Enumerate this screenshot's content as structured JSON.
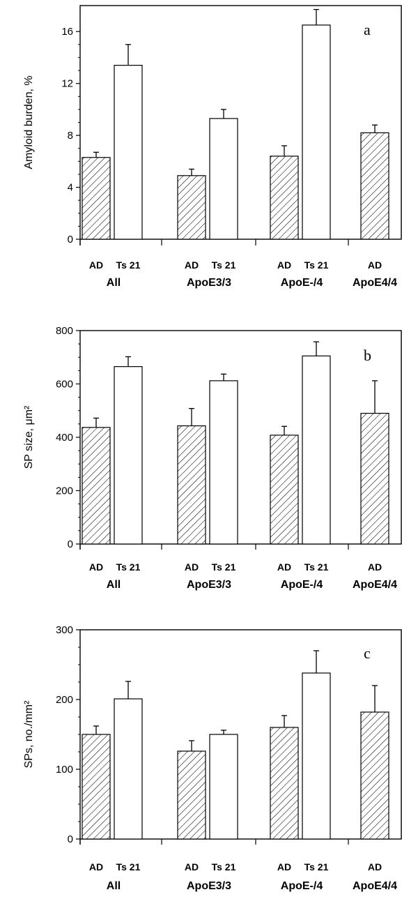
{
  "chart_data": [
    {
      "type": "bar",
      "panel_label": "a",
      "ylabel": "Amyloid burden, %",
      "ylim": [
        0,
        18
      ],
      "yticks": [
        0,
        4,
        8,
        12,
        16
      ],
      "grid": false,
      "groups": [
        {
          "label": "All",
          "bars": [
            {
              "label": "AD",
              "value": 6.3,
              "error": 0.4,
              "fill": "hatch"
            },
            {
              "label": "Ts 21",
              "value": 13.4,
              "error": 1.6,
              "fill": "open"
            }
          ]
        },
        {
          "label": "ApoE3/3",
          "bars": [
            {
              "label": "AD",
              "value": 4.9,
              "error": 0.5,
              "fill": "hatch"
            },
            {
              "label": "Ts 21",
              "value": 9.3,
              "error": 0.7,
              "fill": "open"
            }
          ]
        },
        {
          "label": "ApoE-/4",
          "bars": [
            {
              "label": "AD",
              "value": 6.4,
              "error": 0.8,
              "fill": "hatch"
            },
            {
              "label": "Ts 21",
              "value": 16.5,
              "error": 1.2,
              "fill": "open"
            }
          ]
        },
        {
          "label": "ApoE4/4",
          "bars": [
            {
              "label": "AD",
              "value": 8.2,
              "error": 0.6,
              "fill": "hatch"
            }
          ]
        }
      ]
    },
    {
      "type": "bar",
      "panel_label": "b",
      "ylabel": "SP size, μm²",
      "ylim": [
        0,
        800
      ],
      "yticks": [
        0,
        200,
        400,
        600,
        800
      ],
      "grid": false,
      "groups": [
        {
          "label": "All",
          "bars": [
            {
              "label": "AD",
              "value": 437,
              "error": 35,
              "fill": "hatch"
            },
            {
              "label": "Ts 21",
              "value": 665,
              "error": 37,
              "fill": "open"
            }
          ]
        },
        {
          "label": "ApoE3/3",
          "bars": [
            {
              "label": "AD",
              "value": 443,
              "error": 65,
              "fill": "hatch"
            },
            {
              "label": "Ts 21",
              "value": 612,
              "error": 25,
              "fill": "open"
            }
          ]
        },
        {
          "label": "ApoE-/4",
          "bars": [
            {
              "label": "AD",
              "value": 408,
              "error": 33,
              "fill": "hatch"
            },
            {
              "label": "Ts 21",
              "value": 705,
              "error": 53,
              "fill": "open"
            }
          ]
        },
        {
          "label": "ApoE4/4",
          "bars": [
            {
              "label": "AD",
              "value": 490,
              "error": 122,
              "fill": "hatch"
            }
          ]
        }
      ]
    },
    {
      "type": "bar",
      "panel_label": "c",
      "ylabel": "SPs, no./mm²",
      "ylim": [
        0,
        300
      ],
      "yticks": [
        0,
        100,
        200,
        300
      ],
      "grid": false,
      "groups": [
        {
          "label": "All",
          "bars": [
            {
              "label": "AD",
              "value": 150,
              "error": 12,
              "fill": "hatch"
            },
            {
              "label": "Ts 21",
              "value": 201,
              "error": 25,
              "fill": "open"
            }
          ]
        },
        {
          "label": "ApoE3/3",
          "bars": [
            {
              "label": "AD",
              "value": 126,
              "error": 15,
              "fill": "hatch"
            },
            {
              "label": "Ts 21",
              "value": 150,
              "error": 6,
              "fill": "open"
            }
          ]
        },
        {
          "label": "ApoE-/4",
          "bars": [
            {
              "label": "AD",
              "value": 160,
              "error": 17,
              "fill": "hatch"
            },
            {
              "label": "Ts 21",
              "value": 238,
              "error": 32,
              "fill": "open"
            }
          ]
        },
        {
          "label": "ApoE4/4",
          "bars": [
            {
              "label": "AD",
              "value": 182,
              "error": 38,
              "fill": "hatch"
            }
          ]
        }
      ]
    }
  ]
}
